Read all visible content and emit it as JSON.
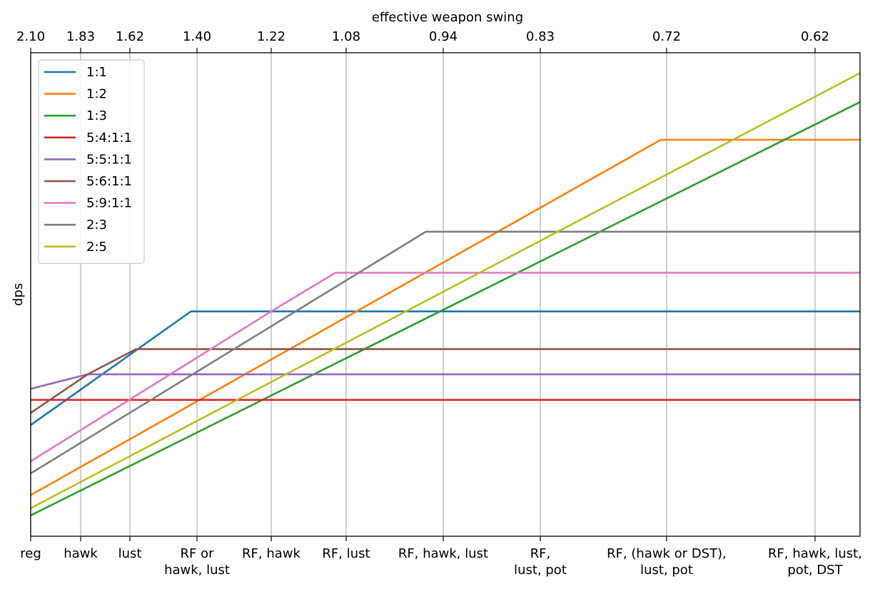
{
  "chart_data": {
    "type": "line",
    "xlabel": "",
    "ylabel": "dps",
    "top_axis_label": "effective weapon swing",
    "grid": "vertical",
    "legend_position": "top-left",
    "x_range": [
      2.1,
      0.6
    ],
    "x_ticks": [
      {
        "swing": 2.1,
        "label": "2.10",
        "bottom": [
          "reg"
        ]
      },
      {
        "swing": 1.83,
        "label": "1.83",
        "bottom": [
          "hawk"
        ]
      },
      {
        "swing": 1.62,
        "label": "1.62",
        "bottom": [
          "lust"
        ]
      },
      {
        "swing": 1.4,
        "label": "1.40",
        "bottom": [
          "RF or",
          "hawk, lust"
        ]
      },
      {
        "swing": 1.22,
        "label": "1.22",
        "bottom": [
          "RF, hawk"
        ]
      },
      {
        "swing": 1.08,
        "label": "1.08",
        "bottom": [
          "RF, lust"
        ]
      },
      {
        "swing": 0.94,
        "label": "0.94",
        "bottom": [
          "RF, hawk, lust"
        ]
      },
      {
        "swing": 0.83,
        "label": "0.83",
        "bottom": [
          "RF,",
          "lust, pot"
        ]
      },
      {
        "swing": 0.72,
        "label": "0.72",
        "bottom": [
          "RF, (hawk or DST),",
          "lust, pot"
        ]
      },
      {
        "swing": 0.62,
        "label": "0.62",
        "bottom": [
          "RF, hawk, lust,",
          "pot, DST"
        ]
      }
    ],
    "y_range": [
      0,
      100
    ],
    "series": [
      {
        "name": "1:1",
        "color": "#1f77b4",
        "points": [
          [
            2.1,
            23
          ],
          [
            1.42,
            46.5
          ],
          [
            0.6,
            46.5
          ]
        ]
      },
      {
        "name": "1:2",
        "color": "#ff7f0e",
        "points": [
          [
            2.1,
            8.5
          ],
          [
            0.725,
            82
          ],
          [
            0.6,
            82
          ]
        ]
      },
      {
        "name": "1:3",
        "color": "#2ca02c",
        "points": [
          [
            2.1,
            4.3
          ],
          [
            0.6,
            89.8
          ]
        ]
      },
      {
        "name": "5:4:1:1",
        "color": "#d62728",
        "points": [
          [
            2.1,
            28.2
          ],
          [
            0.6,
            28.2
          ]
        ]
      },
      {
        "name": "5:5:1:1",
        "color": "#9467bd",
        "points": [
          [
            2.1,
            30.5
          ],
          [
            1.8,
            33.5
          ],
          [
            0.6,
            33.5
          ]
        ]
      },
      {
        "name": "5:6:1:1",
        "color": "#8c564b",
        "points": [
          [
            2.1,
            25.5
          ],
          [
            1.8,
            33.5
          ],
          [
            1.6,
            38.7
          ],
          [
            0.6,
            38.7
          ]
        ]
      },
      {
        "name": "5:9:1:1",
        "color": "#e377c2",
        "points": [
          [
            2.1,
            15.5
          ],
          [
            1.22,
            46.5
          ],
          [
            1.1,
            54.5
          ],
          [
            0.6,
            54.5
          ]
        ]
      },
      {
        "name": "2:3",
        "color": "#7f7f7f",
        "points": [
          [
            2.1,
            13
          ],
          [
            0.965,
            63
          ],
          [
            0.6,
            63
          ]
        ]
      },
      {
        "name": "2:5",
        "color": "#bcbd22",
        "points": [
          [
            2.1,
            5.8
          ],
          [
            0.6,
            95.8
          ]
        ]
      }
    ]
  }
}
